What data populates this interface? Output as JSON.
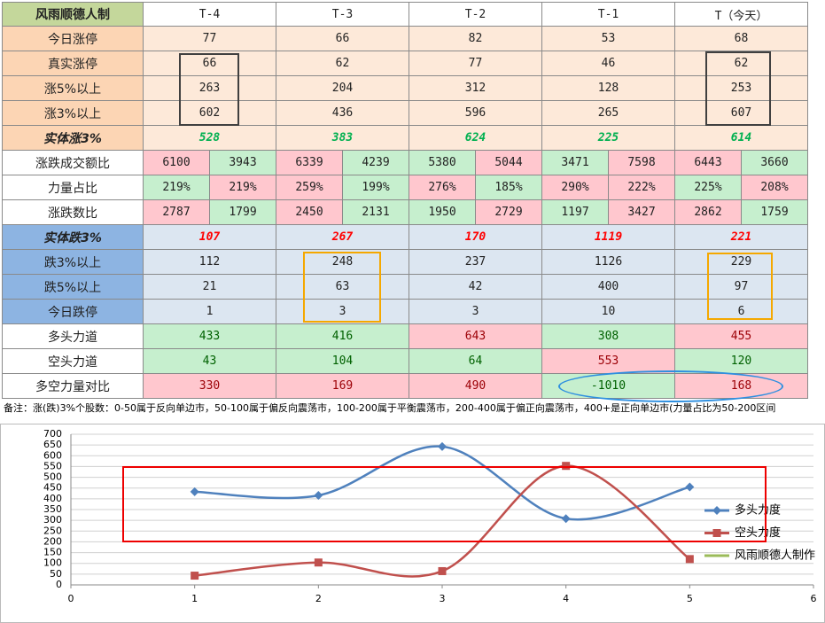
{
  "table": {
    "header": [
      "风雨顺德人制",
      "T-4",
      "T-3",
      "T-2",
      "T-1",
      "T（今天）"
    ],
    "rows": [
      {
        "label": "今日涨停",
        "cells": [
          77,
          66,
          82,
          53,
          68
        ]
      },
      {
        "label": "真实涨停",
        "cells": [
          66,
          62,
          77,
          46,
          62
        ]
      },
      {
        "label": "涨5%以上",
        "cells": [
          263,
          204,
          312,
          128,
          253
        ]
      },
      {
        "label": "涨3%以上",
        "cells": [
          602,
          436,
          596,
          265,
          607
        ]
      },
      {
        "label": "实体涨3%",
        "cells": [
          528,
          383,
          624,
          225,
          614
        ]
      },
      {
        "label": "涨跌成交额比",
        "cells": [
          6100,
          3943,
          6339,
          4239,
          5380,
          5044,
          3471,
          7598,
          6443,
          3660
        ]
      },
      {
        "label": "力量占比",
        "cells": [
          "219%",
          "219%",
          "259%",
          "199%",
          "276%",
          "185%",
          "290%",
          "222%",
          "225%",
          "208%"
        ]
      },
      {
        "label": "涨跌数比",
        "cells": [
          2787,
          1799,
          2450,
          2131,
          1950,
          2729,
          1197,
          3427,
          2862,
          1759
        ]
      },
      {
        "label": "实体跌3%",
        "cells": [
          107,
          267,
          170,
          1119,
          221
        ]
      },
      {
        "label": "跌3%以上",
        "cells": [
          112,
          248,
          237,
          1126,
          229
        ]
      },
      {
        "label": "跌5%以上",
        "cells": [
          21,
          63,
          42,
          400,
          97
        ]
      },
      {
        "label": "今日跌停",
        "cells": [
          1,
          3,
          3,
          10,
          6
        ]
      },
      {
        "label": "多头力道",
        "cells": [
          433,
          416,
          643,
          308,
          455
        ]
      },
      {
        "label": "空头力道",
        "cells": [
          43,
          104,
          64,
          553,
          120
        ]
      },
      {
        "label": "多空力量对比",
        "cells": [
          330,
          169,
          490,
          -1010,
          168
        ]
      }
    ]
  },
  "note": "备注：涨(跌)3%个股数：0-50属于反向单边市，50-100属于偏反向震荡市，100-200属于平衡震荡市，200-400属于偏正向震荡市，400+是正向单边市(力量占比为50-200区间",
  "chart_data": {
    "type": "line",
    "x": [
      1,
      2,
      3,
      4,
      5
    ],
    "series": [
      {
        "name": "多头力度",
        "color": "#4f81bd",
        "values": [
          433,
          416,
          643,
          308,
          455
        ]
      },
      {
        "name": "空头力度",
        "color": "#c0504d",
        "values": [
          43,
          104,
          64,
          553,
          120
        ]
      },
      {
        "name": "风雨顺德人制作",
        "color": "#9bbb59"
      }
    ],
    "xlim": [
      0,
      6
    ],
    "xticks": [
      0,
      1,
      2,
      3,
      4,
      5,
      6
    ],
    "ylim": [
      0,
      700
    ],
    "yticks": [
      0,
      50,
      100,
      150,
      200,
      250,
      300,
      350,
      400,
      450,
      500,
      550,
      600,
      650,
      700
    ],
    "grid": true,
    "legend": "right"
  }
}
